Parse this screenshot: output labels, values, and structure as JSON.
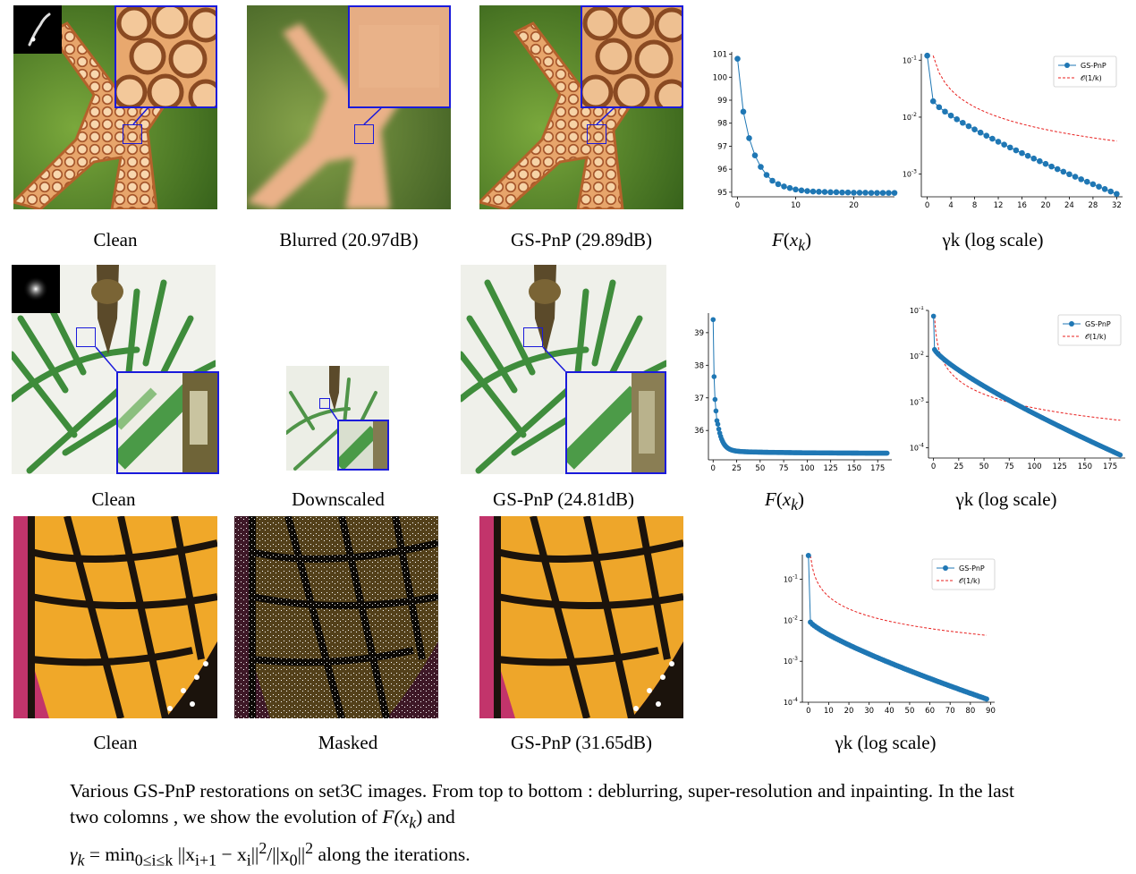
{
  "rows": [
    {
      "task": "deblurring",
      "captions": [
        "Clean",
        "Blurred (20.97dB)",
        "GS-PnP (29.89dB)"
      ],
      "plot_captions": [
        "F(x_k)",
        "γk (log scale)"
      ]
    },
    {
      "task": "super-resolution",
      "captions": [
        "Clean",
        "Downscaled",
        "GS-PnP (24.81dB)"
      ],
      "plot_captions": [
        "F(x_k)",
        "γk (log scale)"
      ]
    },
    {
      "task": "inpainting",
      "captions": [
        "Clean",
        "Masked",
        "GS-PnP (31.65dB)"
      ],
      "plot_captions": [
        "γk (log scale)"
      ]
    }
  ],
  "plot_labels": {
    "fx": "F",
    "xk": "x",
    "k": "k",
    "gamma_suffix": " (log scale)"
  },
  "legend": {
    "series": "GS-PnP",
    "bound": "𝒪(1/k)"
  },
  "caption": {
    "text1": "Various GS-PnP restorations on set3C images.  From top to bottom :  deblurring, super-resolution and inpainting.  In the last two colomns , we show the evolution of ",
    "math1": "F(x",
    "math1b": ") and",
    "text2": "γ",
    "text3": " = min",
    "sub3": "0≤i≤k",
    "text4": " ||x",
    "sub4": "i+1",
    "text5": " − x",
    "sub5": "i",
    "text6": "||",
    "sup6": "2",
    "text7": "/||x",
    "sub7": "0",
    "text8": "||",
    "sup8": "2",
    "text9": " along the iterations."
  },
  "colors": {
    "series": "#1f77b4",
    "bound": "#e8201f",
    "zoom": "#1a1adb"
  },
  "chart_data": [
    {
      "type": "line",
      "id": "row1-F",
      "title": "",
      "xlabel": "",
      "ylabel": "",
      "xlim": [
        -1,
        27
      ],
      "ylim": [
        94.8,
        101.1
      ],
      "yticks": [
        95,
        96,
        97,
        98,
        99,
        100,
        101
      ],
      "xticks": [
        0,
        10,
        20
      ],
      "series": [
        {
          "name": "F(x_k)",
          "x": [
            0,
            1,
            2,
            3,
            4,
            5,
            6,
            7,
            8,
            9,
            10,
            11,
            12,
            13,
            14,
            15,
            16,
            17,
            18,
            19,
            20,
            21,
            22,
            23,
            24,
            25,
            26,
            27
          ],
          "values": [
            100.8,
            98.5,
            97.35,
            96.6,
            96.1,
            95.75,
            95.5,
            95.35,
            95.25,
            95.18,
            95.12,
            95.08,
            95.05,
            95.03,
            95.02,
            95.01,
            95.0,
            95.0,
            94.99,
            94.99,
            94.98,
            94.98,
            94.98,
            94.97,
            94.97,
            94.97,
            94.97,
            94.97
          ]
        }
      ]
    },
    {
      "type": "line",
      "id": "row1-gamma",
      "title": "",
      "xlabel": "",
      "ylabel": "",
      "yscale": "log",
      "xlim": [
        -1,
        33
      ],
      "ylim": [
        0.0004,
        0.12
      ],
      "yticks": [
        "10^-1",
        "10^-2",
        "10^-3"
      ],
      "xticks": [
        0,
        4,
        8,
        12,
        16,
        20,
        24,
        28,
        32
      ],
      "series": [
        {
          "name": "GS-PnP",
          "x": "0..32",
          "values_desc": "from 0.12 at k=0, 0.019 at k=1, decaying to ~0.00045 at k=32"
        },
        {
          "name": "O(1/k)",
          "x": "1..32",
          "values_desc": "0.12/k-type reference decreasing to ~0.0038 at k=32"
        }
      ]
    },
    {
      "type": "line",
      "id": "row2-F",
      "title": "",
      "xlabel": "",
      "ylabel": "",
      "xlim": [
        -5,
        190
      ],
      "ylim": [
        35.1,
        39.6
      ],
      "yticks": [
        36,
        37,
        38,
        39
      ],
      "xticks": [
        0,
        25,
        50,
        75,
        100,
        125,
        150,
        175
      ],
      "series": [
        {
          "name": "F(x_k)",
          "values_desc": "39.4 at k=0, 37.6 at k=1, 36.9, 36.6, 36.3 ... plateau ~35.3 until k=185"
        }
      ]
    },
    {
      "type": "line",
      "id": "row2-gamma",
      "title": "",
      "yscale": "log",
      "xlim": [
        -5,
        190
      ],
      "ylim": [
        7e-05,
        0.1
      ],
      "yticks": [
        "10^-1",
        "10^-2",
        "10^-3",
        "10^-4"
      ],
      "xticks": [
        0,
        25,
        50,
        75,
        100,
        125,
        150,
        175
      ],
      "series": [
        {
          "name": "GS-PnP",
          "values_desc": "0.075 at k=0 decaying to ~7e-5 at k=185"
        },
        {
          "name": "O(1/k)",
          "values_desc": "reference decreasing to ~4e-4 at k=185"
        }
      ]
    },
    {
      "type": "line",
      "id": "row3-gamma",
      "title": "",
      "yscale": "log",
      "xlim": [
        -3,
        92
      ],
      "ylim": [
        0.0001,
        0.4
      ],
      "yticks": [
        "10^-1",
        "10^-2",
        "10^-3",
        "10^-4"
      ],
      "xticks": [
        0,
        10,
        20,
        30,
        40,
        50,
        60,
        70,
        80,
        90
      ],
      "series": [
        {
          "name": "GS-PnP",
          "values_desc": "0.38 at k=0, 0.009 at k=1, decaying to ~1.2e-4 at k=88"
        },
        {
          "name": "O(1/k)",
          "values_desc": "reference decreasing to ~4e-3 at k=88"
        }
      ]
    }
  ]
}
